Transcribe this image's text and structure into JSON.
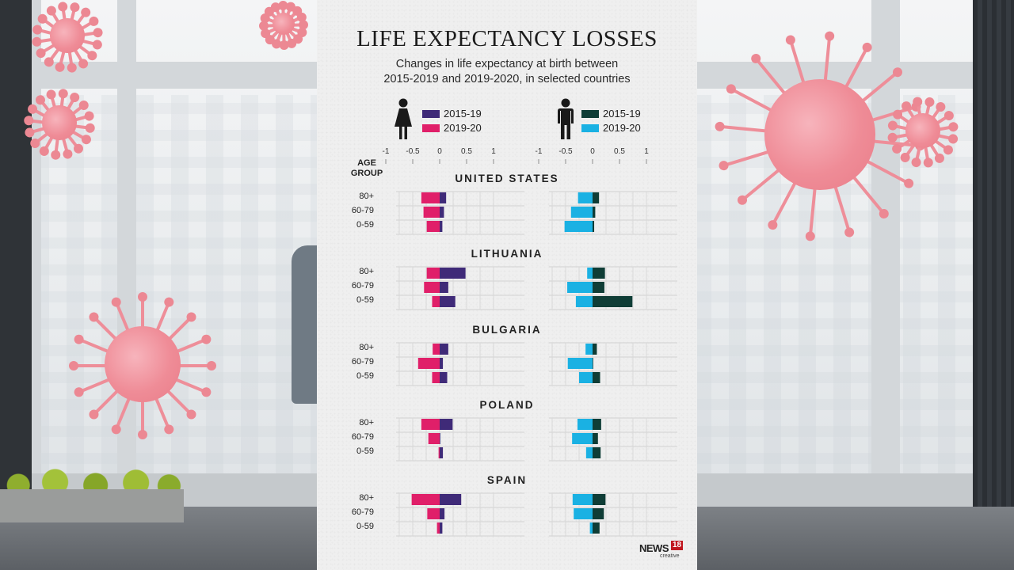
{
  "chart_data": {
    "type": "bar",
    "title": "LIFE EXPECTANCY LOSSES",
    "subtitle_lines": [
      "Changes in life expectancy at birth between",
      "2015-2019 and 2019-2020, in selected countries"
    ],
    "y_header_lines": [
      "AGE",
      "GROUP"
    ],
    "age_groups": [
      "80+",
      "60-79",
      "0-59"
    ],
    "xlim": [
      -1,
      1
    ],
    "x_ticks": [
      -1,
      -0.5,
      0,
      0.5,
      1
    ],
    "x_tick_labels": [
      "-1",
      "-0.5",
      "0",
      "0.5",
      "1"
    ],
    "panels": [
      {
        "sex": "female",
        "legend": [
          {
            "period": "2015-19",
            "color": "#3f2a78"
          },
          {
            "period": "2019-20",
            "color": "#e01f69"
          }
        ]
      },
      {
        "sex": "male",
        "legend": [
          {
            "period": "2015-19",
            "color": "#0f3d36"
          },
          {
            "period": "2019-20",
            "color": "#1ab1e3"
          }
        ]
      }
    ],
    "countries": [
      {
        "name": "UNITED STATES",
        "female": {
          "2015-19": [
            0.12,
            0.08,
            0.05
          ],
          "2019-20": [
            -0.34,
            -0.3,
            -0.24
          ]
        },
        "male": {
          "2015-19": [
            0.12,
            0.05,
            0.03
          ],
          "2019-20": [
            -0.27,
            -0.4,
            -0.52
          ]
        }
      },
      {
        "name": "LITHUANIA",
        "female": {
          "2015-19": [
            0.48,
            0.16,
            0.29
          ],
          "2019-20": [
            -0.24,
            -0.29,
            -0.14
          ]
        },
        "male": {
          "2015-19": [
            0.23,
            0.22,
            0.74
          ],
          "2019-20": [
            -0.1,
            -0.47,
            -0.31
          ]
        }
      },
      {
        "name": "BULGARIA",
        "female": {
          "2015-19": [
            0.16,
            0.06,
            0.14
          ],
          "2019-20": [
            -0.13,
            -0.4,
            -0.14
          ]
        },
        "male": {
          "2015-19": [
            0.08,
            0.01,
            0.14
          ],
          "2019-20": [
            -0.13,
            -0.46,
            -0.25
          ]
        }
      },
      {
        "name": "POLAND",
        "female": {
          "2015-19": [
            0.24,
            0.01,
            0.06
          ],
          "2019-20": [
            -0.34,
            -0.21,
            -0.02
          ]
        },
        "male": {
          "2015-19": [
            0.16,
            0.1,
            0.15
          ],
          "2019-20": [
            -0.28,
            -0.38,
            -0.12
          ]
        }
      },
      {
        "name": "SPAIN",
        "female": {
          "2015-19": [
            0.4,
            0.09,
            0.05
          ],
          "2019-20": [
            -0.52,
            -0.23,
            -0.05
          ]
        },
        "male": {
          "2015-19": [
            0.24,
            0.21,
            0.13
          ],
          "2019-20": [
            -0.37,
            -0.35,
            -0.05
          ]
        }
      }
    ],
    "grid": true,
    "legend_position": "top"
  },
  "logo": {
    "brand": "NEWS",
    "number": "18",
    "tagline": "creative"
  },
  "icons": {
    "female": "woman-icon",
    "male": "man-icon"
  }
}
